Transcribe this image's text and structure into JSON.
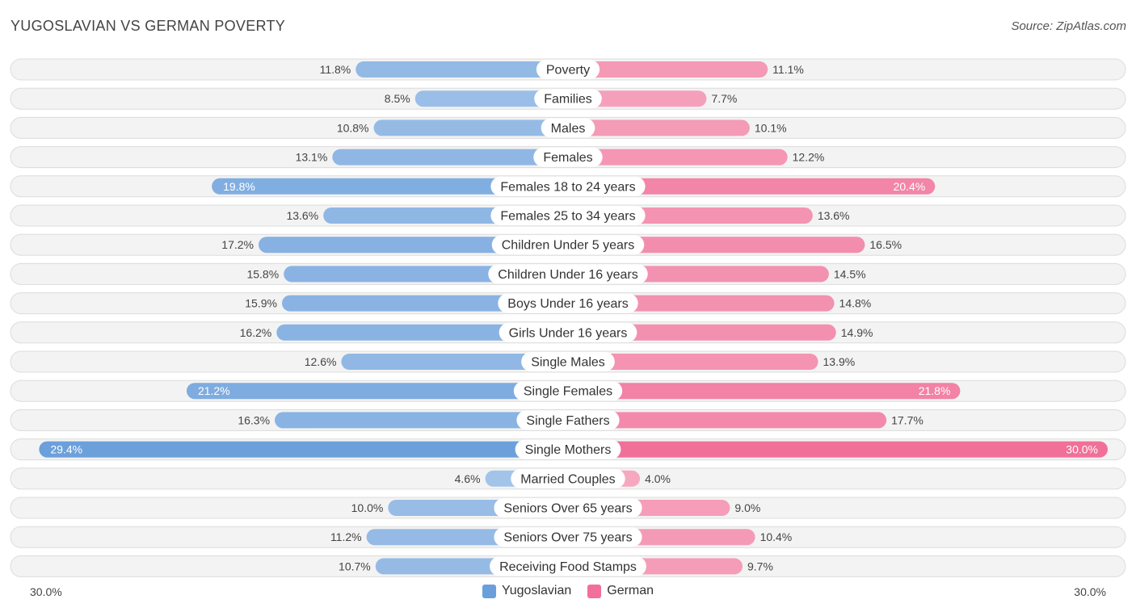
{
  "chart_data": {
    "type": "bar",
    "orientation": "horizontal-diverging",
    "title": "YUGOSLAVIAN VS GERMAN POVERTY",
    "source": "Source: ZipAtlas.com",
    "categories": [
      "Poverty",
      "Families",
      "Males",
      "Females",
      "Females 18 to 24 years",
      "Females 25 to 34 years",
      "Children Under 5 years",
      "Children Under 16 years",
      "Boys Under 16 years",
      "Girls Under 16 years",
      "Single Males",
      "Single Females",
      "Single Fathers",
      "Single Mothers",
      "Married Couples",
      "Seniors Over 65 years",
      "Seniors Over 75 years",
      "Receiving Food Stamps"
    ],
    "series": [
      {
        "name": "Yugoslavian",
        "color": "#6a9fdb",
        "values": [
          11.8,
          8.5,
          10.8,
          13.1,
          19.8,
          13.6,
          17.2,
          15.8,
          15.9,
          16.2,
          12.6,
          21.2,
          16.3,
          29.4,
          4.6,
          10.0,
          11.2,
          10.7
        ]
      },
      {
        "name": "German",
        "color": "#f07099",
        "values": [
          11.1,
          7.7,
          10.1,
          12.2,
          20.4,
          13.6,
          16.5,
          14.5,
          14.8,
          14.9,
          13.9,
          21.8,
          17.7,
          30.0,
          4.0,
          9.0,
          10.4,
          9.7
        ]
      }
    ],
    "value_labels": {
      "Yugoslavian": [
        "11.8%",
        "8.5%",
        "10.8%",
        "13.1%",
        "19.8%",
        "13.6%",
        "17.2%",
        "15.8%",
        "15.9%",
        "16.2%",
        "12.6%",
        "21.2%",
        "16.3%",
        "29.4%",
        "4.6%",
        "10.0%",
        "11.2%",
        "10.7%"
      ],
      "German": [
        "11.1%",
        "7.7%",
        "10.1%",
        "12.2%",
        "20.4%",
        "13.6%",
        "16.5%",
        "14.5%",
        "14.8%",
        "14.9%",
        "13.9%",
        "21.8%",
        "17.7%",
        "30.0%",
        "4.0%",
        "9.0%",
        "10.4%",
        "9.7%"
      ]
    },
    "axis_max": 30.0,
    "axis_left_label": "30.0%",
    "axis_right_label": "30.0%",
    "legend_position": "bottom-center"
  }
}
